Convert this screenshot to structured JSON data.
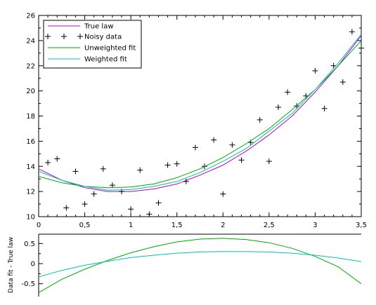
{
  "chart_data": [
    {
      "type": "line",
      "title": "",
      "xlabel": "",
      "ylabel": "",
      "xlim": [
        0,
        3.5
      ],
      "ylim": [
        10,
        26
      ],
      "xticks": [
        0,
        0.5,
        1,
        1.5,
        2,
        2.5,
        3,
        3.5
      ],
      "xtick_labels": [
        "0",
        "0,5",
        "1",
        "1,5",
        "2",
        "2,5",
        "3",
        "3,5"
      ],
      "yticks": [
        10,
        12,
        14,
        16,
        18,
        20,
        22,
        24,
        26
      ],
      "ytick_labels": [
        "10",
        "12",
        "14",
        "16",
        "18",
        "20",
        "22",
        "24",
        "26"
      ],
      "grid": false,
      "legend_position": "top-left",
      "series": [
        {
          "name": "True law",
          "kind": "line",
          "color": "#c000c0",
          "x": [
            0,
            0.25,
            0.5,
            0.75,
            1,
            1.25,
            1.5,
            1.75,
            2,
            2.25,
            2.5,
            2.75,
            3,
            3.25,
            3.5
          ],
          "y": [
            13.8,
            12.9,
            12.3,
            12.0,
            12.0,
            12.2,
            12.6,
            13.3,
            14.1,
            15.2,
            16.5,
            18.0,
            19.9,
            22.0,
            24.4
          ]
        },
        {
          "name": "Noisy data",
          "kind": "scatter",
          "marker": "plus",
          "color": "#000000",
          "x": [
            0.1,
            0.2,
            0.3,
            0.4,
            0.5,
            0.6,
            0.7,
            0.8,
            0.9,
            1.0,
            1.1,
            1.2,
            1.3,
            1.4,
            1.5,
            1.6,
            1.7,
            1.8,
            1.9,
            2.0,
            2.1,
            2.2,
            2.3,
            2.4,
            2.5,
            2.6,
            2.7,
            2.8,
            2.9,
            3.0,
            3.1,
            3.2,
            3.3,
            3.4,
            3.5
          ],
          "y": [
            14.3,
            14.6,
            10.7,
            13.6,
            11.0,
            11.8,
            13.8,
            12.5,
            12.0,
            10.6,
            13.7,
            10.2,
            11.1,
            14.1,
            14.2,
            12.8,
            15.5,
            14.0,
            16.1,
            11.8,
            15.7,
            14.5,
            15.9,
            17.7,
            14.4,
            18.7,
            19.9,
            18.8,
            19.6,
            21.6,
            18.6,
            22.0,
            20.7,
            24.7,
            23.4
          ]
        },
        {
          "name": "Unweighted fit",
          "kind": "line",
          "color": "#00aa00",
          "x": [
            0,
            0.25,
            0.5,
            0.75,
            1,
            1.25,
            1.5,
            1.75,
            2,
            2.25,
            2.5,
            2.75,
            3,
            3.25,
            3.5
          ],
          "y": [
            13.2,
            12.7,
            12.4,
            12.3,
            12.35,
            12.6,
            13.1,
            13.8,
            14.7,
            15.8,
            17.0,
            18.5,
            20.1,
            22.0,
            24.0
          ]
        },
        {
          "name": "Weighted fit",
          "kind": "line",
          "color": "#00c0c0",
          "x": [
            0,
            0.25,
            0.5,
            0.75,
            1,
            1.25,
            1.5,
            1.75,
            2,
            2.25,
            2.5,
            2.75,
            3,
            3.25,
            3.5
          ],
          "y": [
            13.6,
            12.9,
            12.4,
            12.1,
            12.15,
            12.4,
            12.8,
            13.5,
            14.4,
            15.4,
            16.8,
            18.2,
            20.1,
            22.2,
            24.5
          ]
        }
      ]
    },
    {
      "type": "line",
      "title": "",
      "xlabel": "",
      "ylabel": "Data fit - True law",
      "xlim": [
        0,
        3.5
      ],
      "ylim": [
        -0.75,
        0.75
      ],
      "yticks": [
        -0.5,
        0,
        0.5
      ],
      "ytick_labels": [
        "-0.5",
        "0",
        "0.5"
      ],
      "grid": false,
      "series": [
        {
          "name": "Unweighted fit",
          "color": "#00aa00",
          "x": [
            0,
            0.25,
            0.5,
            0.75,
            1,
            1.25,
            1.5,
            1.75,
            2,
            2.25,
            2.5,
            2.75,
            3,
            3.25,
            3.5
          ],
          "y": [
            -0.72,
            -0.39,
            -0.14,
            0.08,
            0.27,
            0.42,
            0.54,
            0.61,
            0.63,
            0.6,
            0.52,
            0.38,
            0.18,
            -0.08,
            -0.5
          ]
        },
        {
          "name": "Weighted fit",
          "color": "#00c0c0",
          "x": [
            0,
            0.25,
            0.5,
            0.75,
            1,
            1.25,
            1.5,
            1.75,
            2,
            2.25,
            2.5,
            2.75,
            3,
            3.25,
            3.5
          ],
          "y": [
            -0.33,
            -0.17,
            -0.04,
            0.06,
            0.15,
            0.21,
            0.26,
            0.29,
            0.3,
            0.3,
            0.29,
            0.26,
            0.21,
            0.14,
            0.05
          ]
        }
      ]
    }
  ]
}
